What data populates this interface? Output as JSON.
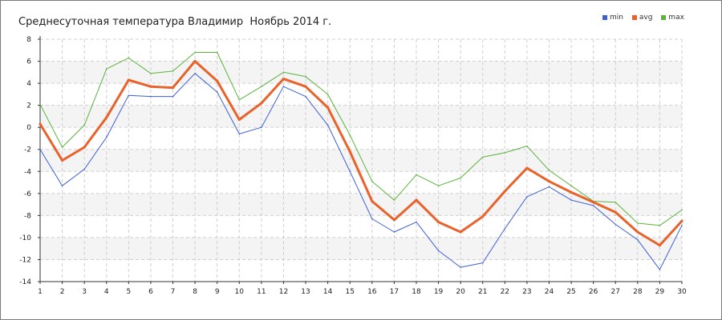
{
  "title": "Среднесуточная температура Владимир  Ноябрь 2014 г.",
  "chart_data": {
    "type": "line",
    "title": "Среднесуточная температура Владимир  Ноябрь 2014 г.",
    "xlabel": "",
    "ylabel": "",
    "x": [
      1,
      2,
      3,
      4,
      5,
      6,
      7,
      8,
      9,
      10,
      11,
      12,
      13,
      14,
      15,
      16,
      17,
      18,
      19,
      20,
      21,
      22,
      23,
      24,
      25,
      26,
      27,
      28,
      29,
      30
    ],
    "xlim": [
      1,
      30
    ],
    "ylim": [
      -14,
      8
    ],
    "yticks": [
      8,
      6,
      4,
      2,
      0,
      -2,
      -4,
      -6,
      -8,
      -10,
      -12,
      -14
    ],
    "xticks": [
      "1",
      "2",
      "3",
      "4",
      "5",
      "6",
      "7",
      "8",
      "9",
      "10",
      "11",
      "12",
      "13",
      "14",
      "15",
      "16",
      "17",
      "18",
      "19",
      "20",
      "21",
      "22",
      "23",
      "24",
      "25",
      "26",
      "27",
      "28",
      "29",
      "30"
    ],
    "grid": true,
    "legend_position": "top-right",
    "series": [
      {
        "name": "min",
        "color": "#3d5fd6",
        "values": [
          -2.0,
          -5.3,
          -3.8,
          -0.9,
          2.9,
          2.8,
          2.8,
          4.9,
          3.2,
          -0.6,
          0.0,
          3.7,
          2.8,
          0.2,
          -4.0,
          -8.3,
          -9.5,
          -8.6,
          -11.2,
          -12.7,
          -12.3,
          -9.2,
          -6.3,
          -5.4,
          -6.6,
          -7.1,
          -8.8,
          -10.2,
          -12.9,
          -8.9
        ]
      },
      {
        "name": "avg",
        "color": "#e8622a",
        "values": [
          0.3,
          -3.0,
          -1.8,
          0.9,
          4.3,
          3.7,
          3.6,
          6.0,
          4.2,
          0.7,
          2.2,
          4.4,
          3.7,
          1.8,
          -2.2,
          -6.7,
          -8.4,
          -6.6,
          -8.6,
          -9.5,
          -8.1,
          -5.8,
          -3.7,
          -4.9,
          -5.9,
          -6.8,
          -7.7,
          -9.5,
          -10.7,
          -8.5
        ]
      },
      {
        "name": "max",
        "color": "#5ab33a",
        "values": [
          2.1,
          -1.8,
          0.2,
          5.3,
          6.3,
          4.9,
          5.1,
          6.8,
          6.8,
          2.5,
          3.7,
          5.0,
          4.6,
          3.0,
          -0.7,
          -4.9,
          -6.6,
          -4.3,
          -5.3,
          -4.6,
          -2.7,
          -2.3,
          -1.7,
          -3.9,
          -5.3,
          -6.7,
          -6.8,
          -8.7,
          -8.9,
          -7.5
        ]
      }
    ]
  }
}
